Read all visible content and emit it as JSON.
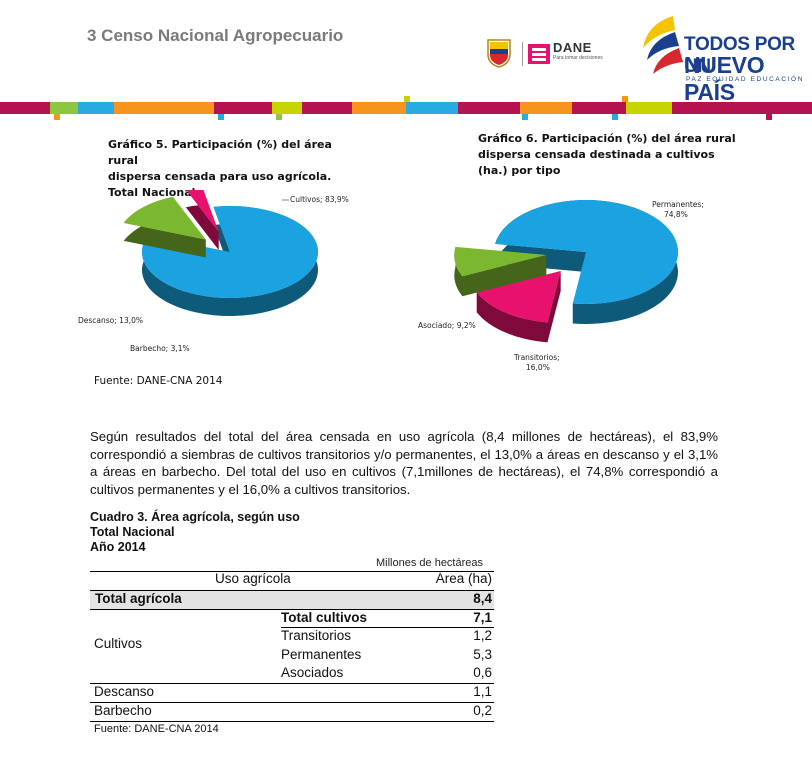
{
  "header": {
    "title": "3 Censo Nacional Agropecuario",
    "dane_label": "DANE",
    "dane_tagline": "Para tomar decisiones",
    "slogan_line1": "TODOS POR UN",
    "slogan_line2": "NUEVO PAÍS",
    "slogan_sub": "PAZ  EQUIDAD  EDUCACIÓN"
  },
  "chart5": {
    "title_lines": [
      "Gráfico 5. Participación (%) del área rural",
      "dispersa censada para uso agrícola.",
      "Total Nacional"
    ],
    "source": "Fuente: DANE-CNA 2014"
  },
  "chart6": {
    "title_lines": [
      "Gráfico 6. Participación (%) del área rural",
      "dispersa censada destinada a cultivos",
      "(ha.) por tipo"
    ]
  },
  "chart_data": [
    {
      "type": "pie",
      "title": "Gráfico 5. Participación (%) del área rural dispersa censada para uso agrícola. Total Nacional",
      "categories": [
        "Cultivos",
        "Descanso",
        "Barbecho"
      ],
      "values": [
        83.9,
        13.0,
        3.1
      ],
      "labels": [
        "Cultivos; 83,9%",
        "Descanso; 13,0%",
        "Barbecho; 3,1%"
      ],
      "colors": [
        "#1aa3e0",
        "#7cb82f",
        "#e8116d"
      ]
    },
    {
      "type": "pie",
      "title": "Gráfico 6. Participación (%) del área rural dispersa censada destinada a cultivos (ha.) por tipo",
      "categories": [
        "Permanentes",
        "Transitorios",
        "Asociados"
      ],
      "values": [
        74.8,
        16.0,
        9.2
      ],
      "labels": [
        "Permanentes;",
        "74,8%",
        "Transitorios;",
        "16,0%",
        "Asociado; 9,2%"
      ],
      "colors": [
        "#1aa3e0",
        "#e8116d",
        "#7cb82f"
      ]
    }
  ],
  "paragraph": "Según resultados del total del área censada en uso agrícola (8,4 millones de hectáreas), el 83,9% correspondió a siembras de cultivos transitorios y/o permanentes, el 13,0% a áreas en descanso y el 3,1% a áreas en barbecho. Del total del uso en cultivos (7,1millones de hectáreas), el 74,8% correspondió a cultivos permanentes y el 16,0% a cultivos transitorios.",
  "table": {
    "title_lines": [
      "Cuadro 3.  Área agrícola, según uso",
      "Total Nacional",
      "Año 2014"
    ],
    "units": "Millones de hectáreas",
    "col_uso": "Uso agrícola",
    "col_area": "Área (ha)",
    "total_label": "Total  agrícola",
    "total_value": "8,4",
    "cultivos_label": "Cultivos",
    "sub_rows": [
      {
        "label": "Total cultivos",
        "value": "7,1"
      },
      {
        "label": "Transitorios",
        "value": "1,2"
      },
      {
        "label": "Permanentes",
        "value": "5,3"
      },
      {
        "label": "Asociados",
        "value": "0,6"
      }
    ],
    "descanso_label": "Descanso",
    "descanso_value": "1,1",
    "barbecho_label": "Barbecho",
    "barbecho_value": "0,2",
    "source": "Fuente: DANE-CNA 2014"
  }
}
